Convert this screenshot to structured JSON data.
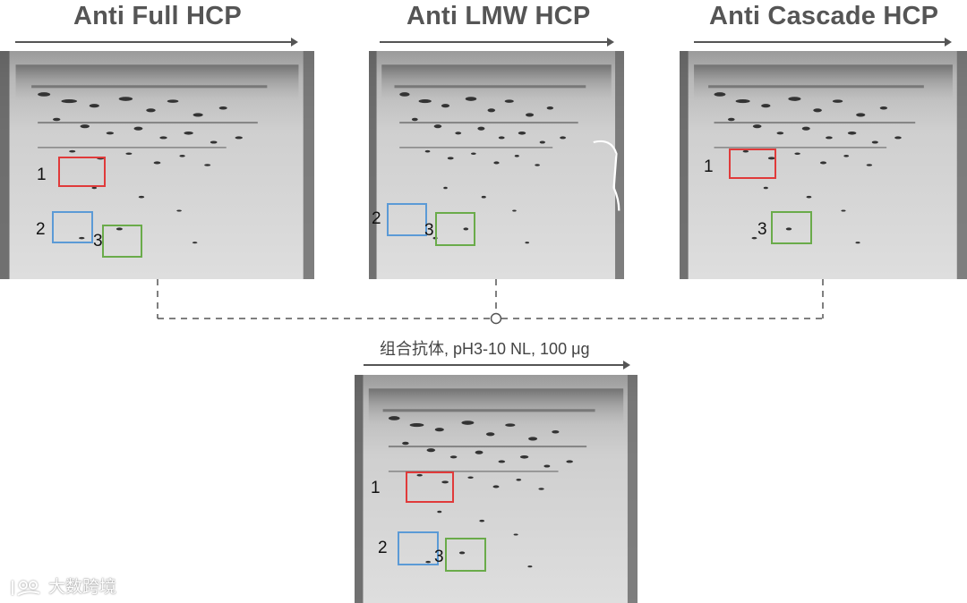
{
  "panels": [
    {
      "title": "Anti Full HCP",
      "labels": [
        "1",
        "2",
        "3"
      ]
    },
    {
      "title": "Anti LMW HCP",
      "labels": [
        "2",
        "3"
      ]
    },
    {
      "title": "Anti Cascade HCP",
      "labels": [
        "1",
        "3"
      ]
    }
  ],
  "combined": {
    "subtitle": "组合抗体, pH3-10 NL, 100 μg",
    "labels": [
      "1",
      "2",
      "3"
    ]
  },
  "watermark": "大数跨境",
  "colors": {
    "box_1": "#e03a3a",
    "box_2": "#5b9ad6",
    "box_3": "#6aab4a",
    "arrow": "#555555"
  }
}
